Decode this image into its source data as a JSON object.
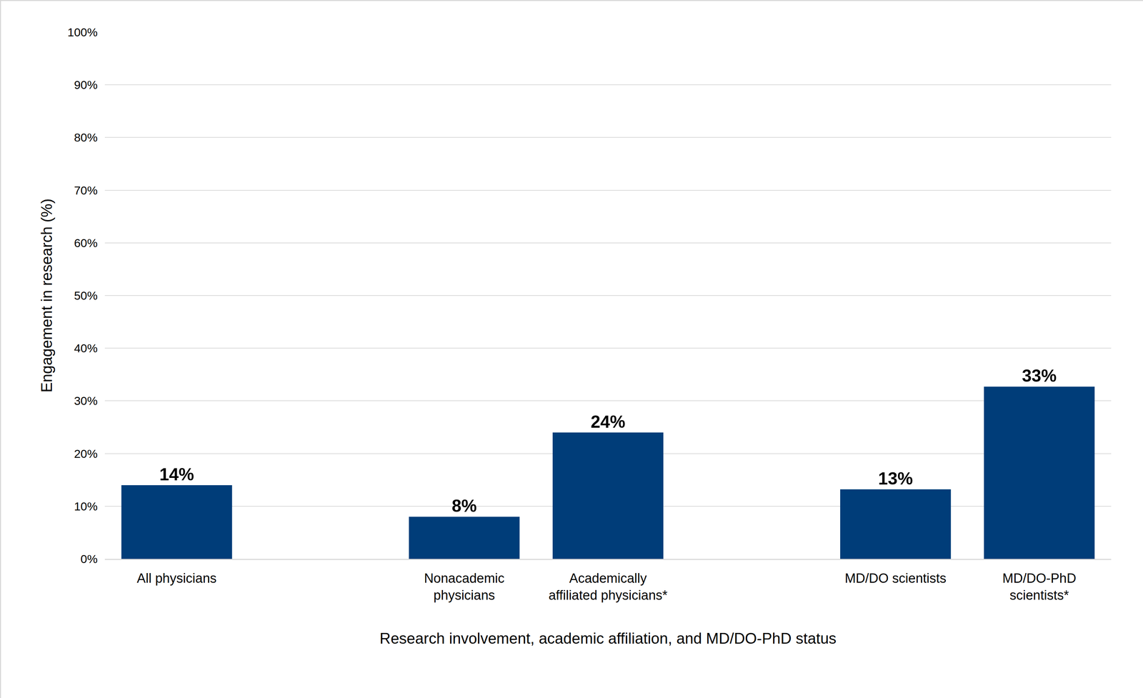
{
  "chart_data": {
    "type": "bar",
    "x_label": "Research involvement, academic affiliation, and MD/DO-PhD status",
    "y_label": "Engagement in research (%)",
    "categories": [
      "All physicians",
      null,
      "Nonacademic physicians",
      "Academically affiliated physicians*",
      null,
      "MD/DO scientists",
      "MD/DO-PhD scientists*"
    ],
    "values": [
      14,
      null,
      8,
      24,
      null,
      13.2,
      32.7
    ],
    "value_labels": [
      "14%",
      null,
      "8%",
      "24%",
      null,
      "13%",
      "33%"
    ],
    "color": "#003d79",
    "ylim": [
      0,
      100
    ],
    "yticks": [
      {
        "value": 0,
        "label": "0%"
      },
      {
        "value": 10,
        "label": "10%"
      },
      {
        "value": 20,
        "label": "20%"
      },
      {
        "value": 30,
        "label": "30%"
      },
      {
        "value": 40,
        "label": "40%"
      },
      {
        "value": 50,
        "label": "50%"
      },
      {
        "value": 60,
        "label": "60%"
      },
      {
        "value": 70,
        "label": "70%"
      },
      {
        "value": 80,
        "label": "80%"
      },
      {
        "value": 90,
        "label": "90%"
      },
      {
        "value": 100,
        "label": "100%"
      }
    ],
    "grid": true,
    "data_labels": true
  }
}
